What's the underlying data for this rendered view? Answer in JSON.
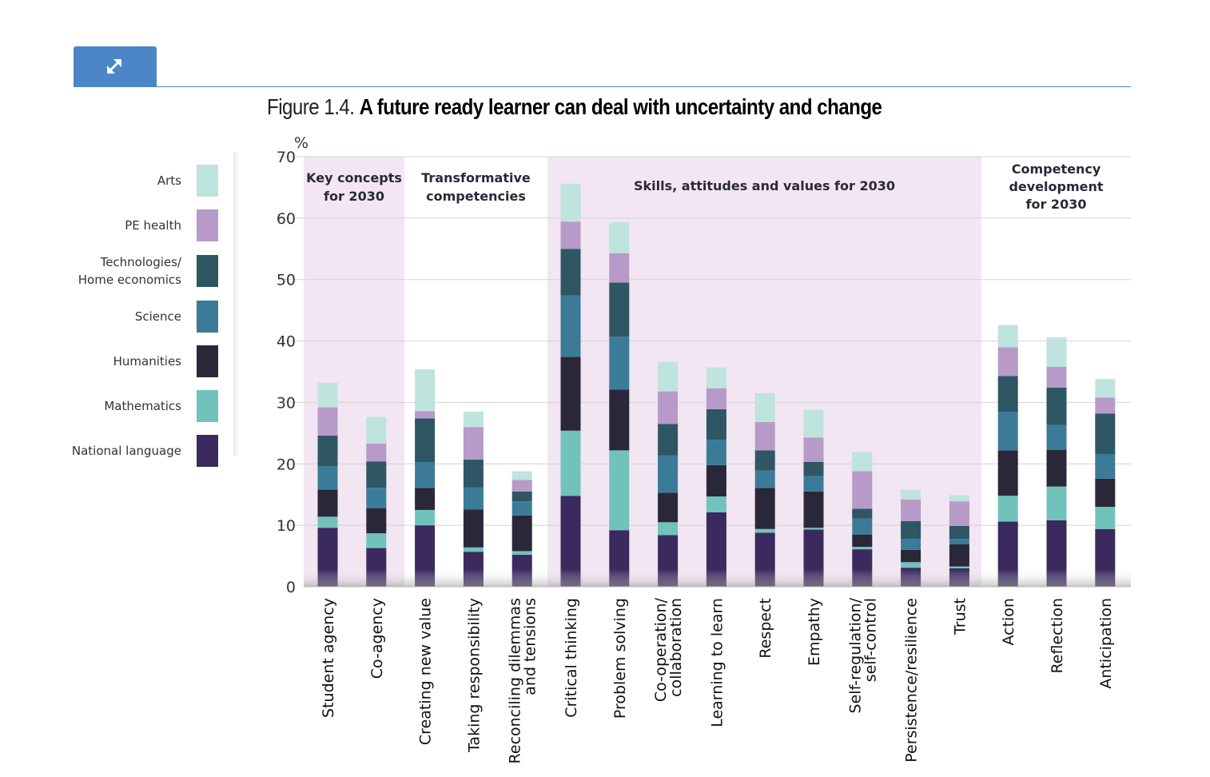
{
  "figure": {
    "number": "Figure 1.4.",
    "title": "A future ready learner can deal with uncertainty and change"
  },
  "controls": {
    "expand_icon": "expand-arrows-icon"
  },
  "colors": {
    "National language": "#3a2a5e",
    "Mathematics": "#72c2bc",
    "Humanities": "#2a2838",
    "Science": "#3b7b98",
    "Technologies/ Home economics": "#2e5663",
    "PE health": "#b79ac8",
    "Arts": "#bfe3dd",
    "shade": "#f1e6f2"
  },
  "legend": [
    {
      "label": "Arts",
      "key": "Arts"
    },
    {
      "label": "PE health",
      "key": "PE health"
    },
    {
      "label": "Technologies/ Home economics",
      "lines": [
        "Technologies/",
        "Home economics"
      ],
      "key": "Technologies/ Home economics"
    },
    {
      "label": "Science",
      "key": "Science"
    },
    {
      "label": "Humanities",
      "key": "Humanities"
    },
    {
      "label": "Mathematics",
      "key": "Mathematics"
    },
    {
      "label": "National language",
      "key": "National language"
    }
  ],
  "chart_data": {
    "type": "bar",
    "stacked": true,
    "yunit": "%",
    "ylim": [
      0,
      70
    ],
    "yticks": [
      0,
      10,
      20,
      30,
      40,
      50,
      60,
      70
    ],
    "grid": true,
    "legend_position": "left",
    "groups": [
      {
        "label": "Key concepts for 2030",
        "lines": [
          "Key concepts",
          "for 2030"
        ],
        "shaded": true,
        "categories": [
          "Student agency",
          "Co-agency"
        ]
      },
      {
        "label": "Transformative competencies",
        "lines": [
          "Transformative",
          "competencies"
        ],
        "shaded": false,
        "categories": [
          "Creating new value",
          "Taking responsibility",
          "Reconciling dilemmas and tensions"
        ]
      },
      {
        "label": "Skills, attitudes and values for 2030",
        "lines": [
          "Skills, attitudes and values for 2030"
        ],
        "shaded": true,
        "categories": [
          "Critical thinking",
          "Problem solving",
          "Co-operation/ collaboration",
          "Learning to learn",
          "Respect",
          "Empathy",
          "Self-regulation/ self-control",
          "Persistence/resilience",
          "Trust"
        ]
      },
      {
        "label": "Competency development for 2030",
        "lines": [
          "Competency",
          "development",
          "for 2030"
        ],
        "shaded": false,
        "categories": [
          "Action",
          "Reflection",
          "Anticipation"
        ]
      }
    ],
    "categories": [
      {
        "label": "Student agency",
        "lines": [
          "Student agency"
        ]
      },
      {
        "label": "Co-agency",
        "lines": [
          "Co-agency"
        ]
      },
      {
        "label": "Creating new value",
        "lines": [
          "Creating new value"
        ]
      },
      {
        "label": "Taking responsibility",
        "lines": [
          "Taking responsibility"
        ]
      },
      {
        "label": "Reconciling dilemmas and tensions",
        "lines": [
          "Reconciling dilemmas",
          "and tensions"
        ]
      },
      {
        "label": "Critical thinking",
        "lines": [
          "Critical thinking"
        ]
      },
      {
        "label": "Problem solving",
        "lines": [
          "Problem solving"
        ]
      },
      {
        "label": "Co-operation/ collaboration",
        "lines": [
          "Co-operation/",
          "collaboration"
        ]
      },
      {
        "label": "Learning to learn",
        "lines": [
          "Learning to learn"
        ]
      },
      {
        "label": "Respect",
        "lines": [
          "Respect"
        ]
      },
      {
        "label": "Empathy",
        "lines": [
          "Empathy"
        ]
      },
      {
        "label": "Self-regulation/ self-control",
        "lines": [
          "Self-regulation/",
          "self-control"
        ]
      },
      {
        "label": "Persistence/resilience",
        "lines": [
          "Persistence/resilience"
        ]
      },
      {
        "label": "Trust",
        "lines": [
          "Trust"
        ]
      },
      {
        "label": "Action",
        "lines": [
          "Action"
        ]
      },
      {
        "label": "Reflection",
        "lines": [
          "Reflection"
        ]
      },
      {
        "label": "Anticipation",
        "lines": [
          "Anticipation"
        ]
      }
    ],
    "series": [
      {
        "name": "National language",
        "values": [
          9.6,
          6.3,
          10.0,
          5.7,
          5.2,
          14.8,
          9.2,
          8.4,
          12.1,
          8.8,
          9.3,
          6.1,
          3.1,
          3.0,
          10.6,
          10.8,
          9.4
        ]
      },
      {
        "name": "Mathematics",
        "values": [
          1.8,
          2.4,
          2.5,
          0.7,
          0.6,
          10.6,
          13.0,
          2.1,
          2.6,
          0.6,
          0.3,
          0.4,
          0.9,
          0.3,
          4.2,
          5.5,
          3.6
        ]
      },
      {
        "name": "Humanities",
        "values": [
          4.4,
          4.1,
          3.6,
          6.2,
          5.8,
          12.0,
          9.9,
          4.8,
          5.1,
          6.7,
          5.9,
          2.0,
          2.0,
          3.6,
          7.4,
          6.0,
          4.6
        ]
      },
      {
        "name": "Science",
        "values": [
          3.8,
          3.3,
          4.2,
          3.6,
          2.3,
          10.0,
          8.6,
          6.1,
          4.1,
          2.8,
          2.5,
          2.6,
          1.8,
          0.9,
          6.3,
          4.0,
          4.0
        ]
      },
      {
        "name": "Technologies/ Home economics",
        "values": [
          5.0,
          4.3,
          7.1,
          4.5,
          1.6,
          7.6,
          8.8,
          5.1,
          5.0,
          3.3,
          2.3,
          1.6,
          2.9,
          2.1,
          5.8,
          6.1,
          6.6
        ]
      },
      {
        "name": "PE health",
        "values": [
          4.6,
          2.9,
          1.2,
          5.3,
          1.9,
          4.4,
          4.8,
          5.3,
          3.4,
          4.6,
          4.0,
          6.1,
          3.5,
          4.0,
          4.7,
          3.4,
          2.6
        ]
      },
      {
        "name": "Arts",
        "values": [
          4.0,
          4.3,
          6.8,
          2.5,
          1.4,
          6.2,
          5.0,
          4.8,
          3.4,
          4.7,
          4.5,
          3.1,
          1.6,
          1.0,
          3.6,
          4.8,
          3.0
        ]
      }
    ]
  }
}
